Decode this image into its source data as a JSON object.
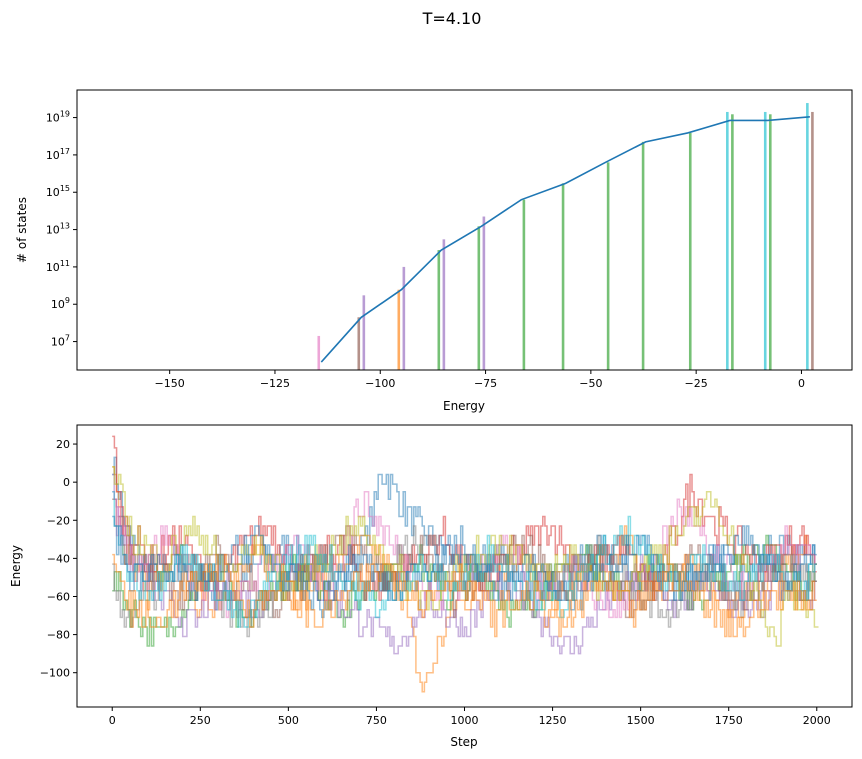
{
  "figure": {
    "suptitle": "T=4.10"
  },
  "chart_data": [
    {
      "type": "line",
      "subtype": "histogram-with-line",
      "xlabel": "Energy",
      "ylabel": "# of states",
      "yscale": "log",
      "xlim": [
        -172,
        12
      ],
      "ylim": [
        300000.0,
        3e+20
      ],
      "xticks": [
        -150,
        -125,
        -100,
        -75,
        -50,
        -25,
        0
      ],
      "yticks": [
        {
          "value": 10000000.0,
          "base": "10",
          "exp": "7"
        },
        {
          "value": 1000000000.0,
          "base": "10",
          "exp": "9"
        },
        {
          "value": 100000000000.0,
          "base": "10",
          "exp": "11"
        },
        {
          "value": 10000000000000.0,
          "base": "10",
          "exp": "13"
        },
        {
          "value": 1000000000000000.0,
          "base": "10",
          "exp": "15"
        },
        {
          "value": 1e+17,
          "base": "10",
          "exp": "17"
        },
        {
          "value": 1e+19,
          "base": "10",
          "exp": "19"
        }
      ],
      "line": {
        "color": "#1f77b4",
        "x": [
          -114,
          -104.5,
          -95,
          -85.5,
          -76,
          -66.5,
          -56,
          -46.5,
          -37,
          -27,
          -17,
          -8,
          2
        ],
        "y": [
          800000.0,
          200000000.0,
          6000000000.0,
          800000000000.0,
          15000000000000.0,
          400000000000000.0,
          3000000000000000.0,
          4e+16,
          5e+17,
          1.5e+18,
          7e+18,
          7e+18,
          1.1e+19
        ]
      },
      "bars": [
        {
          "x": -114,
          "top": 20000000.0,
          "color": "#e377c2"
        },
        {
          "x": -104.5,
          "top": 3000000000.0,
          "color": "#9467bd"
        },
        {
          "x": -104.5,
          "top": 200000000.0,
          "color": "#8c564b"
        },
        {
          "x": -95,
          "top": 100000000000.0,
          "color": "#9467bd"
        },
        {
          "x": -95,
          "top": 6000000000.0,
          "color": "#ff7f0e"
        },
        {
          "x": -85.5,
          "top": 3000000000000.0,
          "color": "#9467bd"
        },
        {
          "x": -85.5,
          "top": 800000000000.0,
          "color": "#2ca02c"
        },
        {
          "x": -76,
          "top": 50000000000000.0,
          "color": "#9467bd"
        },
        {
          "x": -76,
          "top": 15000000000000.0,
          "color": "#2ca02c"
        },
        {
          "x": -66.5,
          "top": 400000000000000.0,
          "color": "#2ca02c"
        },
        {
          "x": -56,
          "top": 3000000000000000.0,
          "color": "#2ca02c"
        },
        {
          "x": -46.5,
          "top": 4e+16,
          "color": "#2ca02c"
        },
        {
          "x": -37,
          "top": 5e+17,
          "color": "#2ca02c"
        },
        {
          "x": -27,
          "top": 1.5e+18,
          "color": "#2ca02c"
        },
        {
          "x": -17,
          "top": 2e+19,
          "color": "#17becf"
        },
        {
          "x": -17,
          "top": 1.5e+19,
          "color": "#2ca02c"
        },
        {
          "x": -8,
          "top": 2e+19,
          "color": "#17becf"
        },
        {
          "x": -8,
          "top": 1.5e+19,
          "color": "#2ca02c"
        },
        {
          "x": 2,
          "top": 6e+19,
          "color": "#17becf"
        },
        {
          "x": 2,
          "top": 2e+19,
          "color": "#8c564b"
        }
      ]
    },
    {
      "type": "line",
      "xlabel": "Step",
      "ylabel": "Energy",
      "xlim": [
        -100,
        2100
      ],
      "ylim": [
        -118,
        30
      ],
      "xticks": [
        0,
        250,
        500,
        750,
        1000,
        1250,
        1500,
        1750,
        2000
      ],
      "yticks": [
        20,
        0,
        -20,
        -40,
        -60,
        -80,
        -100
      ],
      "colors": [
        "#1f77b4",
        "#ff7f0e",
        "#2ca02c",
        "#d62728",
        "#9467bd",
        "#8c564b",
        "#e377c2",
        "#7f7f7f",
        "#bcbd22",
        "#17becf"
      ],
      "alpha": 0.5,
      "step_levels": [
        24,
        18,
        13,
        8,
        4,
        -1,
        -5,
        -9,
        -13,
        -18,
        -23,
        -28,
        -33,
        -38,
        -43,
        -47,
        -52,
        -57,
        -62,
        -67,
        -71,
        -76,
        -81,
        -86,
        -90,
        -95,
        -100,
        -105,
        -110
      ],
      "series": [
        {
          "x": [
            0,
            40,
            120,
            200,
            300,
            400,
            500,
            600,
            700,
            750,
            760,
            850,
            1000,
            1100,
            1200,
            1300,
            1400,
            1500,
            1600,
            1700,
            1800,
            1900,
            2000
          ],
          "y": [
            13,
            -28,
            -52,
            -38,
            -60,
            -45,
            -33,
            -57,
            -40,
            -9,
            8,
            -20,
            -47,
            -38,
            -57,
            -43,
            -33,
            -52,
            -62,
            -38,
            -47,
            -33,
            -43
          ]
        },
        {
          "x": [
            0,
            30,
            100,
            180,
            260,
            340,
            420,
            520,
            620,
            720,
            820,
            880,
            960,
            1060,
            1160,
            1260,
            1360,
            1460,
            1560,
            1660,
            1760,
            1860,
            1960,
            2000
          ],
          "y": [
            8,
            -33,
            -57,
            -43,
            -67,
            -52,
            -38,
            -62,
            -47,
            -33,
            -57,
            -110,
            -67,
            -52,
            -38,
            -62,
            -47,
            -33,
            -57,
            -43,
            -67,
            -52,
            -38,
            -43
          ]
        },
        {
          "x": [
            0,
            50,
            130,
            210,
            290,
            370,
            450,
            550,
            650,
            750,
            850,
            950,
            1050,
            1150,
            1250,
            1350,
            1450,
            1550,
            1650,
            1750,
            1850,
            1950,
            2000
          ],
          "y": [
            -52,
            -67,
            -83,
            -62,
            -47,
            -76,
            -57,
            -43,
            -67,
            -52,
            -38,
            -62,
            -47,
            -71,
            -52,
            -38,
            -57,
            -43,
            -62,
            -47,
            -33,
            -57,
            -47
          ]
        },
        {
          "x": [
            0,
            25,
            110,
            190,
            270,
            350,
            440,
            540,
            640,
            740,
            840,
            940,
            1040,
            1140,
            1240,
            1340,
            1440,
            1540,
            1640,
            1740,
            1840,
            1940,
            2000
          ],
          "y": [
            22,
            -18,
            -43,
            -28,
            -52,
            -38,
            -23,
            -47,
            -33,
            -57,
            -43,
            -28,
            -52,
            -38,
            -23,
            -47,
            -33,
            -57,
            -4,
            -28,
            -43,
            -28,
            -38
          ]
        },
        {
          "x": [
            0,
            45,
            140,
            230,
            320,
            410,
            500,
            600,
            700,
            800,
            900,
            1000,
            1100,
            1200,
            1300,
            1400,
            1500,
            1600,
            1700,
            1800,
            1900,
            2000
          ],
          "y": [
            0,
            -38,
            -62,
            -76,
            -52,
            -67,
            -43,
            -57,
            -71,
            -86,
            -62,
            -76,
            -52,
            -67,
            -90,
            -62,
            -47,
            -67,
            -52,
            -71,
            -57,
            -62
          ]
        },
        {
          "x": [
            0,
            35,
            115,
            205,
            295,
            385,
            475,
            575,
            675,
            775,
            875,
            975,
            1075,
            1175,
            1275,
            1375,
            1475,
            1575,
            1675,
            1775,
            1875,
            1975,
            2000
          ],
          "y": [
            -4,
            -33,
            -47,
            -62,
            -38,
            -52,
            -67,
            -43,
            -28,
            -52,
            -38,
            -62,
            -47,
            -33,
            -57,
            -43,
            -67,
            -52,
            -38,
            -62,
            -47,
            -57,
            -52
          ]
        },
        {
          "x": [
            0,
            60,
            150,
            240,
            330,
            420,
            510,
            610,
            710,
            810,
            910,
            1010,
            1110,
            1210,
            1310,
            1410,
            1510,
            1610,
            1710,
            1810,
            1910,
            2000
          ],
          "y": [
            -13,
            -43,
            -28,
            -52,
            -67,
            -47,
            -33,
            -57,
            -9,
            -38,
            -62,
            -47,
            -33,
            -57,
            -43,
            -67,
            -52,
            -13,
            -43,
            -57,
            -33,
            -47
          ]
        },
        {
          "x": [
            0,
            40,
            125,
            215,
            305,
            395,
            485,
            585,
            685,
            785,
            885,
            985,
            1085,
            1185,
            1285,
            1385,
            1485,
            1585,
            1685,
            1785,
            1885,
            1985,
            2000
          ],
          "y": [
            -52,
            -71,
            -57,
            -43,
            -62,
            -76,
            -52,
            -38,
            -57,
            -43,
            -28,
            -52,
            -38,
            -62,
            -47,
            -33,
            -57,
            -71,
            -47,
            -62,
            -38,
            -52,
            -43
          ]
        },
        {
          "x": [
            0,
            55,
            145,
            235,
            325,
            415,
            505,
            605,
            705,
            805,
            905,
            1005,
            1105,
            1205,
            1305,
            1405,
            1505,
            1605,
            1705,
            1805,
            1885,
            1905,
            2005
          ],
          "y": [
            4,
            -28,
            -43,
            -23,
            -47,
            -33,
            -57,
            -38,
            -23,
            -47,
            -62,
            -43,
            -28,
            -52,
            -38,
            -57,
            -43,
            -28,
            -9,
            -52,
            -86,
            -57,
            -76
          ]
        },
        {
          "x": [
            0,
            30,
            105,
            195,
            285,
            375,
            465,
            565,
            665,
            765,
            865,
            965,
            1065,
            1165,
            1265,
            1365,
            1465,
            1565,
            1665,
            1765,
            1865,
            1965,
            2000
          ],
          "y": [
            -9,
            -43,
            -57,
            -38,
            -52,
            -76,
            -47,
            -33,
            -52,
            -67,
            -43,
            -57,
            -38,
            -52,
            -67,
            -43,
            -28,
            -52,
            -38,
            -57,
            -43,
            -57,
            -38
          ]
        },
        {
          "x": [
            0,
            50,
            135,
            225,
            315,
            405,
            495,
            595,
            695,
            795,
            895,
            995,
            1095,
            1195,
            1295,
            1395,
            1495,
            1595,
            1695,
            1795,
            1895,
            2000
          ],
          "y": [
            -23,
            -52,
            -38,
            -57,
            -43,
            -28,
            -52,
            -62,
            -38,
            -57,
            -43,
            -33,
            -57,
            -43,
            -62,
            -47,
            -33,
            -57,
            -43,
            -28,
            -52,
            -38
          ]
        },
        {
          "x": [
            0,
            35,
            120,
            210,
            300,
            390,
            480,
            580,
            680,
            780,
            880,
            980,
            1080,
            1180,
            1280,
            1380,
            1480,
            1580,
            1680,
            1780,
            1880,
            1980,
            2000
          ],
          "y": [
            -33,
            -62,
            -76,
            -57,
            -43,
            -67,
            -52,
            -71,
            -57,
            -43,
            -62,
            -47,
            -71,
            -57,
            -76,
            -52,
            -67,
            -47,
            -62,
            -76,
            -57,
            -62,
            -52
          ]
        }
      ]
    }
  ]
}
